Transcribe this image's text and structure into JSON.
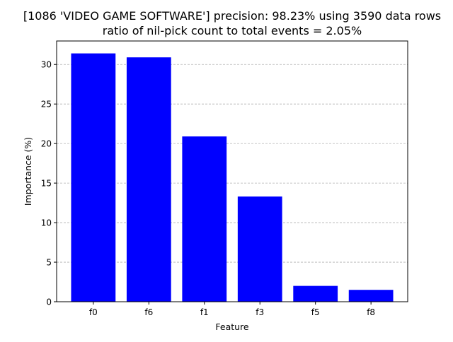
{
  "chart_data": {
    "type": "bar",
    "title": "[1086 'VIDEO GAME SOFTWARE'] precision: 98.23% using 3590 data rows",
    "subtitle": "ratio of nil-pick count to total events = 2.05%",
    "xlabel": "Feature",
    "ylabel": "Importance (%)",
    "categories": [
      "f0",
      "f6",
      "f1",
      "f3",
      "f5",
      "f8"
    ],
    "values": [
      31.4,
      30.9,
      20.9,
      13.3,
      2.0,
      1.5
    ],
    "ylim": [
      0,
      32.97
    ],
    "yticks": [
      0,
      5,
      10,
      15,
      20,
      25,
      30
    ],
    "grid": "y-dashed",
    "bar_color": "#0000ff",
    "grid_color": "#b0b0b0"
  }
}
